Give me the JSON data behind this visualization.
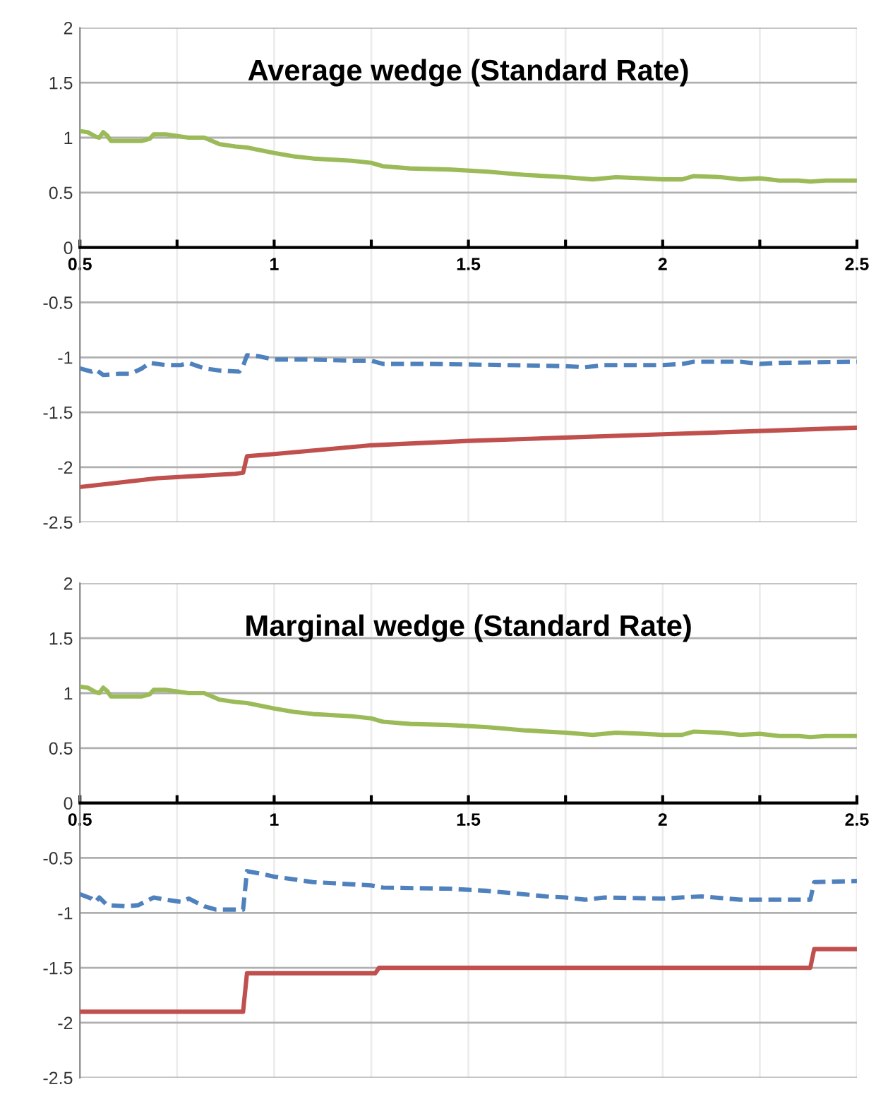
{
  "chart_data": [
    {
      "type": "line",
      "title": "Average wedge (Standard Rate)",
      "xlim": [
        0.5,
        2.5
      ],
      "ylim": [
        -2.5,
        2
      ],
      "xticks": [
        0.5,
        {
          "value": 0.75,
          "label": null
        },
        1,
        {
          "value": 1.25,
          "label": null
        },
        1.5,
        {
          "value": 1.75,
          "label": null
        },
        2,
        {
          "value": 2.25,
          "label": null
        },
        2.5
      ],
      "yticks": [
        -2.5,
        -2,
        -1.5,
        -1,
        -0.5,
        0,
        0.5,
        1,
        1.5,
        2
      ],
      "grid": true,
      "legend": false,
      "marker": "none",
      "series": [
        {
          "color": "#9bbb59",
          "line_style": "solid",
          "x": [
            0.5,
            0.52,
            0.54,
            0.55,
            0.56,
            0.57,
            0.58,
            0.6,
            0.66,
            0.68,
            0.69,
            0.72,
            0.76,
            0.78,
            0.82,
            0.86,
            0.9,
            0.93,
            1.0,
            1.05,
            1.1,
            1.2,
            1.25,
            1.28,
            1.35,
            1.45,
            1.55,
            1.65,
            1.75,
            1.82,
            1.88,
            1.95,
            2.0,
            2.05,
            2.08,
            2.15,
            2.2,
            2.25,
            2.3,
            2.35,
            2.38,
            2.42,
            2.5
          ],
          "values": [
            1.06,
            1.05,
            1.01,
            1.0,
            1.05,
            1.02,
            0.97,
            0.97,
            0.97,
            0.99,
            1.03,
            1.03,
            1.01,
            1.0,
            1.0,
            0.94,
            0.92,
            0.91,
            0.86,
            0.83,
            0.81,
            0.79,
            0.77,
            0.74,
            0.72,
            0.71,
            0.69,
            0.66,
            0.64,
            0.62,
            0.64,
            0.63,
            0.62,
            0.62,
            0.65,
            0.64,
            0.62,
            0.63,
            0.61,
            0.61,
            0.6,
            0.61,
            0.61
          ]
        },
        {
          "color": "#4f81bd",
          "line_style": "dashed",
          "x": [
            0.5,
            0.53,
            0.54,
            0.56,
            0.6,
            0.63,
            0.66,
            0.68,
            0.72,
            0.76,
            0.78,
            0.82,
            0.86,
            0.91,
            0.92,
            0.93,
            0.96,
            1.0,
            1.1,
            1.2,
            1.25,
            1.28,
            1.4,
            1.6,
            1.75,
            1.8,
            1.85,
            2.0,
            2.05,
            2.08,
            2.2,
            2.25,
            2.3,
            2.5
          ],
          "values": [
            -1.1,
            -1.13,
            -1.11,
            -1.16,
            -1.15,
            -1.15,
            -1.1,
            -1.05,
            -1.07,
            -1.07,
            -1.05,
            -1.1,
            -1.12,
            -1.13,
            -1.08,
            -0.98,
            -0.99,
            -1.02,
            -1.02,
            -1.03,
            -1.03,
            -1.06,
            -1.06,
            -1.07,
            -1.08,
            -1.09,
            -1.07,
            -1.07,
            -1.06,
            -1.04,
            -1.04,
            -1.06,
            -1.05,
            -1.04
          ]
        },
        {
          "color": "#c0504d",
          "line_style": "solid",
          "x": [
            0.5,
            0.6,
            0.7,
            0.8,
            0.9,
            0.92,
            0.93,
            1.0,
            1.25,
            1.5,
            1.75,
            2.0,
            2.25,
            2.5
          ],
          "values": [
            -2.18,
            -2.14,
            -2.1,
            -2.08,
            -2.06,
            -2.05,
            -1.9,
            -1.88,
            -1.8,
            -1.76,
            -1.73,
            -1.7,
            -1.67,
            -1.64
          ]
        }
      ]
    },
    {
      "type": "line",
      "title": "Marginal wedge (Standard Rate)",
      "xlim": [
        0.5,
        2.5
      ],
      "ylim": [
        -2.5,
        2
      ],
      "xticks": [
        0.5,
        {
          "value": 0.75,
          "label": null
        },
        1,
        {
          "value": 1.25,
          "label": null
        },
        1.5,
        {
          "value": 1.75,
          "label": null
        },
        2,
        {
          "value": 2.25,
          "label": null
        },
        2.5
      ],
      "yticks": [
        -2.5,
        -2,
        -1.5,
        -1,
        -0.5,
        0,
        0.5,
        1,
        1.5,
        2
      ],
      "grid": true,
      "legend": false,
      "marker": "none",
      "series": [
        {
          "color": "#9bbb59",
          "line_style": "solid",
          "x": [
            0.5,
            0.52,
            0.54,
            0.55,
            0.56,
            0.57,
            0.58,
            0.6,
            0.66,
            0.68,
            0.69,
            0.72,
            0.76,
            0.78,
            0.82,
            0.86,
            0.9,
            0.93,
            1.0,
            1.05,
            1.1,
            1.2,
            1.25,
            1.28,
            1.35,
            1.45,
            1.55,
            1.65,
            1.75,
            1.82,
            1.88,
            1.95,
            2.0,
            2.05,
            2.08,
            2.15,
            2.2,
            2.25,
            2.3,
            2.35,
            2.38,
            2.42,
            2.5
          ],
          "values": [
            1.06,
            1.05,
            1.01,
            1.0,
            1.05,
            1.02,
            0.97,
            0.97,
            0.97,
            0.99,
            1.03,
            1.03,
            1.01,
            1.0,
            1.0,
            0.94,
            0.92,
            0.91,
            0.86,
            0.83,
            0.81,
            0.79,
            0.77,
            0.74,
            0.72,
            0.71,
            0.69,
            0.66,
            0.64,
            0.62,
            0.64,
            0.63,
            0.62,
            0.62,
            0.65,
            0.64,
            0.62,
            0.63,
            0.61,
            0.61,
            0.6,
            0.61,
            0.61
          ]
        },
        {
          "color": "#4f81bd",
          "line_style": "dashed",
          "x": [
            0.5,
            0.53,
            0.54,
            0.55,
            0.57,
            0.62,
            0.65,
            0.69,
            0.72,
            0.76,
            0.78,
            0.82,
            0.85,
            0.91,
            0.92,
            0.93,
            0.96,
            1.0,
            1.1,
            1.2,
            1.25,
            1.28,
            1.45,
            1.55,
            1.7,
            1.75,
            1.8,
            1.85,
            2.0,
            2.1,
            2.2,
            2.38,
            2.39,
            2.5
          ],
          "values": [
            -0.83,
            -0.87,
            -0.9,
            -0.86,
            -0.93,
            -0.94,
            -0.93,
            -0.86,
            -0.88,
            -0.9,
            -0.87,
            -0.94,
            -0.97,
            -0.97,
            -0.97,
            -0.62,
            -0.64,
            -0.67,
            -0.72,
            -0.74,
            -0.75,
            -0.77,
            -0.78,
            -0.8,
            -0.85,
            -0.86,
            -0.88,
            -0.86,
            -0.87,
            -0.85,
            -0.88,
            -0.88,
            -0.72,
            -0.71
          ]
        },
        {
          "color": "#c0504d",
          "line_style": "solid",
          "x": [
            0.5,
            0.92,
            0.93,
            1.26,
            1.27,
            2.38,
            2.39,
            2.5
          ],
          "values": [
            -1.9,
            -1.9,
            -1.55,
            -1.55,
            -1.5,
            -1.5,
            -1.33,
            -1.33
          ]
        }
      ]
    }
  ]
}
